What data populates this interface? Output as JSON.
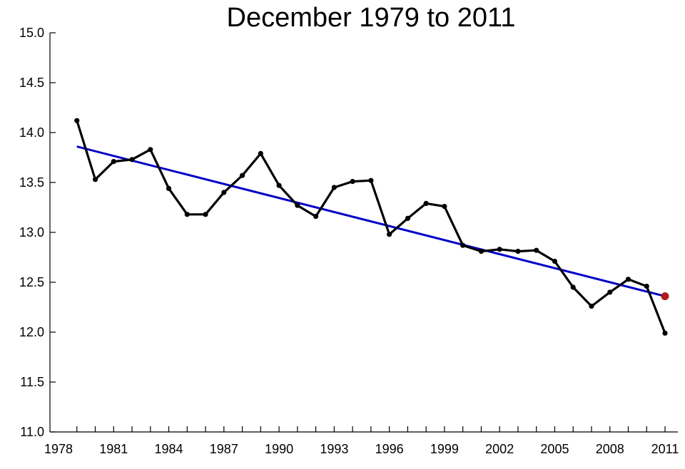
{
  "chart_data": {
    "type": "line",
    "title": "December 1979 to 2011",
    "xlabel": "",
    "ylabel": "",
    "xlim": [
      1978,
      2012
    ],
    "ylim": [
      11.0,
      15.0
    ],
    "x_ticks": [
      "1978",
      "1981",
      "1984",
      "1987",
      "1990",
      "1993",
      "1996",
      "1999",
      "2002",
      "2005",
      "2008",
      "2011"
    ],
    "y_ticks": [
      "11.0",
      "11.5",
      "12.0",
      "12.5",
      "13.0",
      "13.5",
      "14.0",
      "14.5",
      "15.0"
    ],
    "grid": false,
    "legend": "none",
    "series": [
      {
        "color": "#000000",
        "x": [
          1979,
          1980,
          1981,
          1982,
          1983,
          1984,
          1985,
          1986,
          1987,
          1988,
          1989,
          1990,
          1991,
          1992,
          1993,
          1994,
          1995,
          1996,
          1997,
          1998,
          1999,
          2000,
          2001,
          2002,
          2003,
          2004,
          2005,
          2006,
          2007,
          2008,
          2009,
          2010,
          2011
        ],
        "values": [
          14.12,
          13.53,
          13.71,
          13.73,
          13.83,
          13.44,
          13.18,
          13.18,
          13.4,
          13.57,
          13.79,
          13.47,
          13.27,
          13.16,
          13.45,
          13.51,
          13.52,
          12.98,
          13.14,
          13.29,
          13.26,
          12.87,
          12.81,
          12.83,
          12.81,
          12.82,
          12.71,
          12.45,
          12.26,
          12.4,
          12.53,
          12.46,
          11.99
        ]
      },
      {
        "color": "#0000c8",
        "x": [
          1979,
          2011
        ],
        "values": [
          13.86,
          12.36
        ]
      }
    ],
    "highlight": {
      "x": 2011,
      "value": 12.36,
      "color": "#b01a1a"
    }
  }
}
